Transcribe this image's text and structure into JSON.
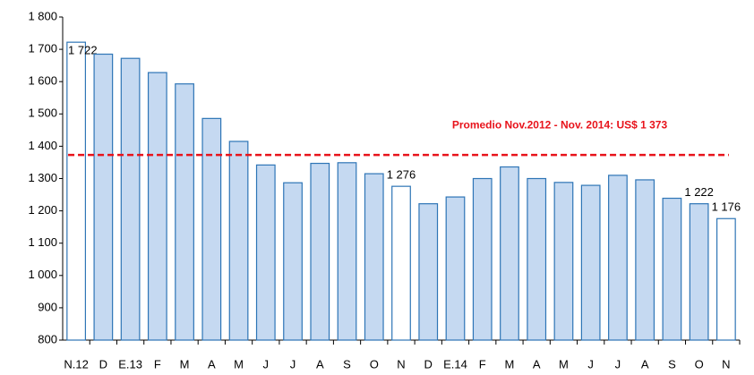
{
  "chart_data": {
    "type": "bar",
    "categories": [
      "N.12",
      "D",
      "E.13",
      "F",
      "M",
      "A",
      "M",
      "J",
      "J",
      "A",
      "S",
      "O",
      "N",
      "D",
      "E.14",
      "F",
      "M",
      "A",
      "M",
      "J",
      "J",
      "A",
      "S",
      "O",
      "N"
    ],
    "values": [
      1722,
      1685,
      1672,
      1628,
      1593,
      1486,
      1415,
      1342,
      1287,
      1347,
      1349,
      1315,
      1276,
      1222,
      1243,
      1300,
      1336,
      1300,
      1288,
      1279,
      1310,
      1296,
      1239,
      1222,
      1176
    ],
    "value_labels": [
      "1 722",
      null,
      null,
      null,
      null,
      null,
      null,
      null,
      null,
      null,
      null,
      null,
      "1 276",
      null,
      null,
      null,
      null,
      null,
      null,
      null,
      null,
      null,
      null,
      "1 222",
      "1 176"
    ],
    "colors": [
      "#ffffff",
      "#c5d9f1",
      "#c5d9f1",
      "#c5d9f1",
      "#c5d9f1",
      "#c5d9f1",
      "#c5d9f1",
      "#c5d9f1",
      "#c5d9f1",
      "#c5d9f1",
      "#c5d9f1",
      "#c5d9f1",
      "#ffffff",
      "#c5d9f1",
      "#c5d9f1",
      "#c5d9f1",
      "#c5d9f1",
      "#c5d9f1",
      "#c5d9f1",
      "#c5d9f1",
      "#c5d9f1",
      "#c5d9f1",
      "#c5d9f1",
      "#c5d9f1",
      "#ffffff"
    ],
    "edge_color": "#2e75b6",
    "ylim": [
      800,
      1800
    ],
    "yticks": [
      {
        "value": 800,
        "label": "800"
      },
      {
        "value": 900,
        "label": "900"
      },
      {
        "value": 1000,
        "label": "1 000"
      },
      {
        "value": 1100,
        "label": "1 100"
      },
      {
        "value": 1200,
        "label": "1 200"
      },
      {
        "value": 1300,
        "label": "1 300"
      },
      {
        "value": 1400,
        "label": "1 400"
      },
      {
        "value": 1500,
        "label": "1 500"
      },
      {
        "value": 1600,
        "label": "1 600"
      },
      {
        "value": 1700,
        "label": "1 700"
      },
      {
        "value": 1800,
        "label": "1 800"
      }
    ],
    "reference_line": {
      "value": 1373,
      "label": "Promedio Nov.2012 - Nov. 2014: US$ 1 373",
      "color": "#e8131b"
    }
  }
}
